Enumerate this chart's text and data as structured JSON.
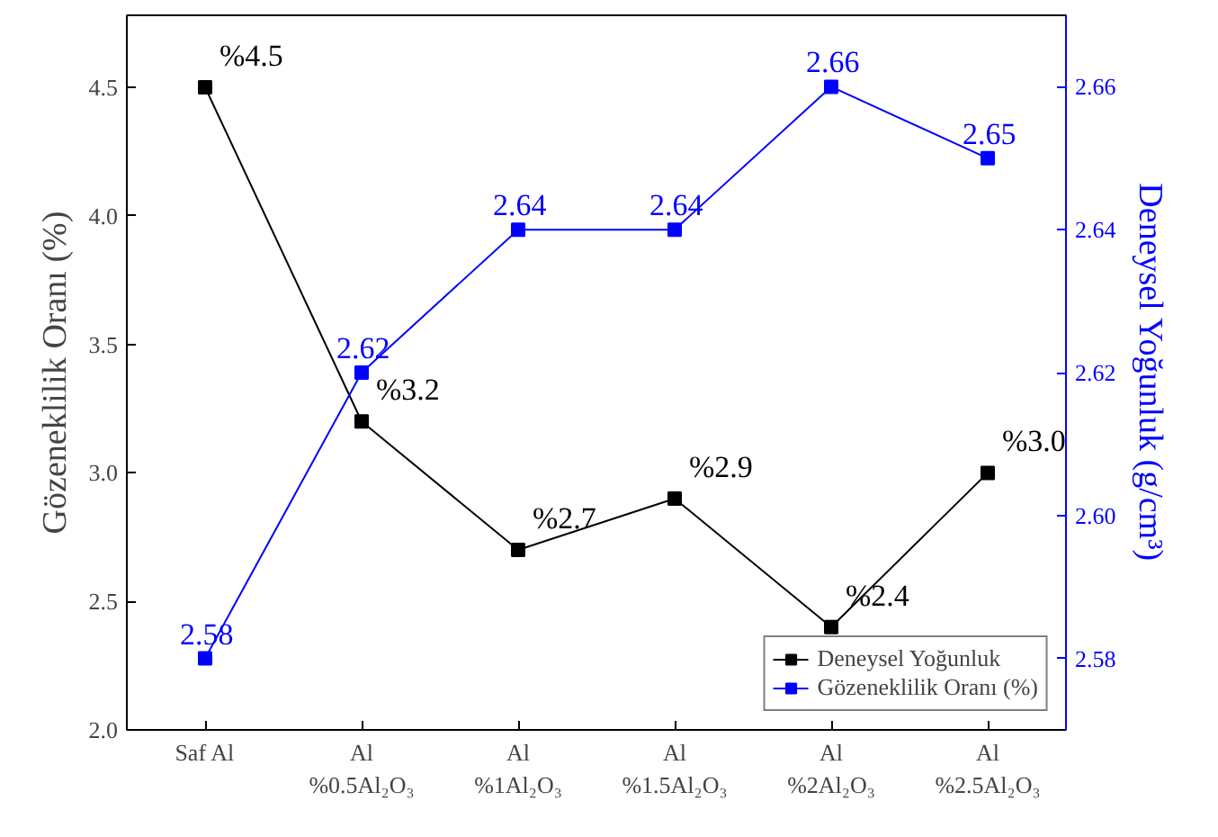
{
  "chart_data": {
    "type": "line",
    "ylabel": "Gözeneklilik Oranı (%)",
    "y2label": "Deneysel Yoğunluk (g/cm³)",
    "categories": [
      "Saf Al",
      "Al\n%0.5Al₂O₃",
      "Al\n%1Al₂O₃",
      "Al\n%1.5Al₂O₃",
      "Al\n%2Al₂O₃",
      "Al\n%2.5Al₂O₃"
    ],
    "ylim": [
      2.0,
      4.78
    ],
    "yticks": [
      {
        "value": 2.0,
        "label": "2.0"
      },
      2.5,
      {
        "value": 3.0,
        "label": "3.0"
      },
      3.5,
      {
        "value": 4.0,
        "label": "4.0"
      },
      4.5
    ],
    "y2lim": [
      2.57,
      2.67
    ],
    "y2ticks": [
      2.58,
      {
        "value": 2.6,
        "label": "2.60"
      },
      2.62,
      2.64,
      2.66
    ],
    "series": [
      {
        "name": "Deneysel Yoğunluk",
        "color": "#000000",
        "values": [
          4.5,
          3.2,
          2.7,
          2.9,
          2.4,
          3.0
        ],
        "value_labels": [
          "%4.5",
          "%3.2",
          "%2.7",
          "%2.9",
          "%2.4",
          "%3.0"
        ]
      },
      {
        "name": "Gözeneklilik Oranı (%)",
        "color": "#0000ff",
        "axis": "y2",
        "values": [
          2.58,
          2.62,
          2.64,
          2.64,
          2.66,
          2.65
        ],
        "value_labels": [
          "2.58",
          "2.62",
          "2.64",
          "2.64",
          "2.66",
          "2.65"
        ]
      }
    ],
    "marker": "square",
    "line_style": "solid",
    "grid": false,
    "legend": "bottom right"
  }
}
